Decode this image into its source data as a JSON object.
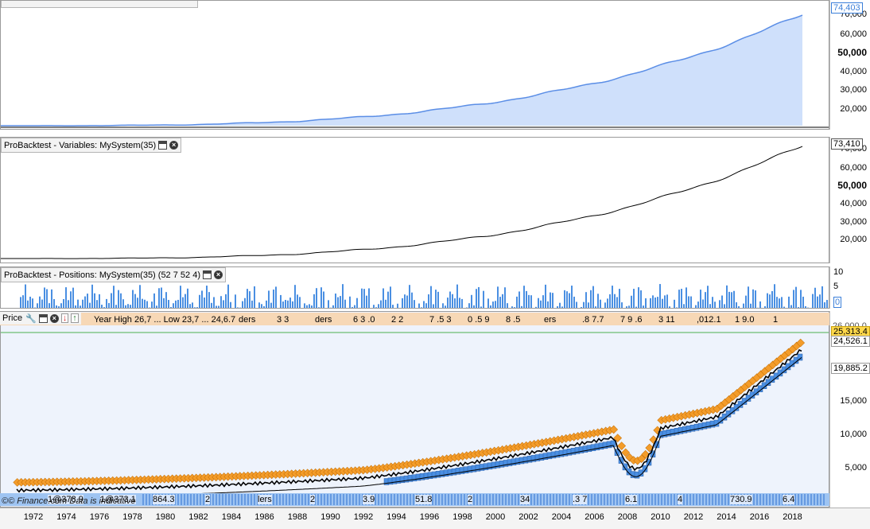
{
  "panels": {
    "equity": {
      "last_value": "74,403",
      "ticks": [
        "70,000",
        "60,000",
        "50,000",
        "40,000",
        "30,000",
        "20,000"
      ]
    },
    "variables": {
      "title": "ProBacktest - Variables: MySystem(35)",
      "last_value": "73,410",
      "ticks": [
        "70,000",
        "60,000",
        "50,000",
        "40,000",
        "30,000",
        "20,000"
      ]
    },
    "positions": {
      "title": "ProBacktest - Positions: MySystem(35) (52 7 52 4)",
      "ticks": [
        "10",
        "5",
        "0"
      ]
    },
    "price": {
      "title": "Price",
      "info_text": "Year High 26,7 ... Low 23,7 ... 24,6.7",
      "info_fragments": [
        "ders",
        "3 3",
        "ders",
        "6 3 .0",
        "2 2",
        "7 .5 3",
        "0 .5 9",
        "8 .5",
        "ers",
        ".8 7.7",
        "7 9 .6",
        "3 11",
        ",012.1",
        "1 9.0",
        "1"
      ],
      "last_price": "25,313.4",
      "marker_2": "24,526.1",
      "marker_3": "19,885.2",
      "partial_top": "26,000.0",
      "ticks": [
        "15,000",
        "10,000",
        "5,000"
      ],
      "bottom_fragments": [
        "1@378.9",
        "1@373.1",
        "864.3",
        "2",
        "lers",
        "2",
        "3.9",
        "51.8",
        "2",
        "34",
        ".3 7",
        "6.1",
        "4",
        "730.9",
        "6.4"
      ],
      "source": "©© Finance.com Data is indicative"
    }
  },
  "years": [
    "1972",
    "1974",
    "1976",
    "1978",
    "1980",
    "1982",
    "1984",
    "1986",
    "1988",
    "1990",
    "1992",
    "1994",
    "1996",
    "1998",
    "2000",
    "2002",
    "2004",
    "2006",
    "2008",
    "2010",
    "2012",
    "2014",
    "2016",
    "2018"
  ],
  "colors": {
    "equity_fill": "#cfe0fb",
    "equity_line": "#5b8ee6",
    "short_marker": "#f39c2a",
    "long_marker": "#4a8fe2",
    "price_line": "#000000",
    "highlight_box": "#ffd84a"
  }
}
